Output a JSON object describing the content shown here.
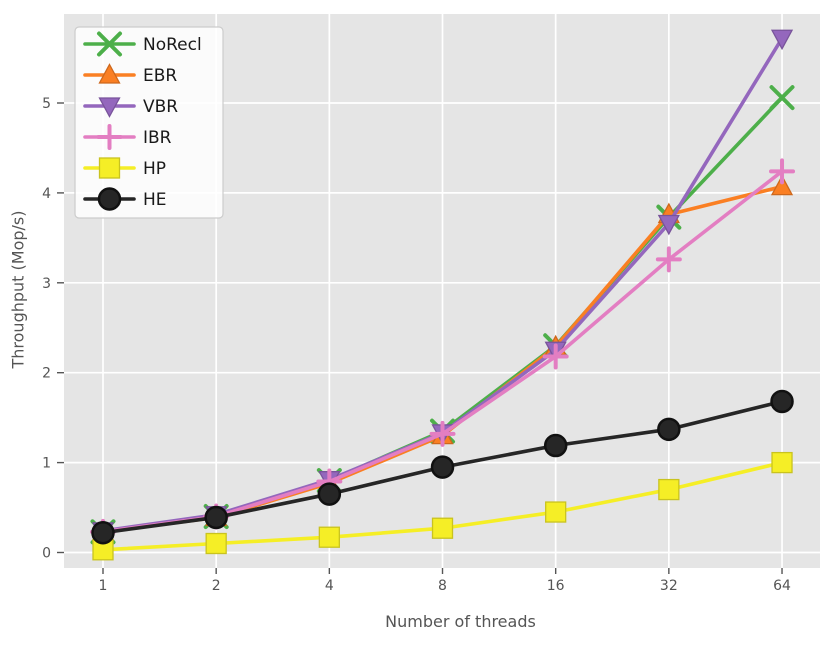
{
  "figure": {
    "plot_background": "#e5e5e5",
    "grid_color": "#ffffff",
    "tick_color": "#555555",
    "label_color": "#555555",
    "legend_text_color": "#1a1a1a",
    "legend_background": "rgba(255,255,255,0.82)",
    "legend_border": "#cccccc"
  },
  "chart_data": {
    "type": "line",
    "title": "",
    "xlabel": "Number of threads",
    "ylabel": "Throughput (Mop/s)",
    "x_scale": "log2",
    "x": [
      1,
      2,
      4,
      8,
      16,
      32,
      64
    ],
    "xtick_labels": [
      "1",
      "2",
      "4",
      "8",
      "16",
      "32",
      "64"
    ],
    "yticks": [
      0,
      1,
      2,
      3,
      4,
      5
    ],
    "ytick_labels": [
      "0",
      "1",
      "2",
      "3",
      "4",
      "5"
    ],
    "ylim": [
      -0.17,
      5.99
    ],
    "grid": true,
    "legend_position": "upper-left",
    "legend_order": [
      "NoRecl",
      "EBR",
      "VBR",
      "IBR",
      "HP",
      "HE"
    ],
    "series": [
      {
        "name": "NoRecl",
        "marker": "x",
        "color": "#4daf4a",
        "values": [
          0.23,
          0.4,
          0.8,
          1.35,
          2.3,
          3.73,
          5.06
        ]
      },
      {
        "name": "EBR",
        "marker": "triangle-up",
        "color": "#fa7f23",
        "values": [
          0.23,
          0.39,
          0.77,
          1.3,
          2.29,
          3.76,
          4.07
        ]
      },
      {
        "name": "VBR",
        "marker": "triangle-down",
        "color": "#9467bd",
        "values": [
          0.24,
          0.42,
          0.81,
          1.33,
          2.25,
          3.66,
          5.72
        ]
      },
      {
        "name": "IBR",
        "marker": "plus",
        "color": "#e37ec2",
        "values": [
          0.23,
          0.4,
          0.79,
          1.32,
          2.18,
          3.26,
          4.24
        ]
      },
      {
        "name": "HP",
        "marker": "square",
        "color": "#f5ee26",
        "values": [
          0.03,
          0.1,
          0.17,
          0.27,
          0.45,
          0.7,
          1.0
        ]
      },
      {
        "name": "HE",
        "marker": "circle",
        "color": "#262626",
        "values": [
          0.22,
          0.39,
          0.65,
          0.95,
          1.19,
          1.37,
          1.68
        ]
      }
    ]
  }
}
